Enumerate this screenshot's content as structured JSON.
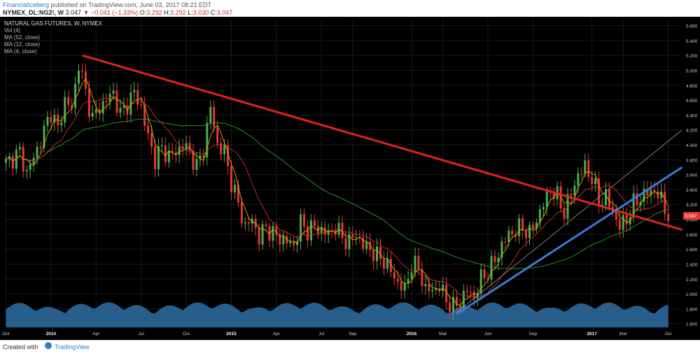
{
  "header": {
    "publisher": "FinancialIceberg",
    "published_text": "published on TradingView.com, June 03, 2017 08:21 EDT",
    "symbol": "NYMEX_DL:NG2!, W",
    "price": "3.047",
    "change": "−0.041 (−1.33%)",
    "ohlc_o_label": "O:",
    "ohlc_o": "3.292",
    "ohlc_h_label": "H:",
    "ohlc_h": "3.292",
    "ohlc_l_label": "L:",
    "ohlc_l": "3.030",
    "ohlc_c_label": "C:",
    "ohlc_c": "3.047"
  },
  "footer": {
    "created_with": "Created with",
    "brand": "TradingView"
  },
  "colors": {
    "background": "#000000",
    "bull": "#4caf50",
    "bear": "#e53935",
    "resistance_line": "#e32020",
    "support_line": "#3a7ad6",
    "ma12": "#d32f2f",
    "ma52": "#2e9e2e",
    "ma4": "#c8b400",
    "volume": "#2e6fa3",
    "grid": "#1a1a1a"
  },
  "chart_data": {
    "type": "candlestick",
    "title": "NATURAL GAS FUTURES, W, NYMEX",
    "indicators": [
      "Vol (4)",
      "MA (52, close)",
      "MA (12, close)",
      "MA (4, close)"
    ],
    "y_ticks": [
      "5.600",
      "5.400",
      "5.200",
      "5.000",
      "4.800",
      "4.600",
      "4.400",
      "4.200",
      "4.000",
      "3.800",
      "3.600",
      "3.400",
      "3.200",
      "3.000",
      "2.800",
      "2.600",
      "2.400",
      "2.200",
      "2.000",
      "1.800",
      "1.600"
    ],
    "ylim": [
      1.55,
      5.68
    ],
    "x_labels": [
      {
        "label": "Oct",
        "week": 0
      },
      {
        "label": "2014",
        "week": 13
      },
      {
        "label": "Apr",
        "week": 26
      },
      {
        "label": "Jul",
        "week": 39
      },
      {
        "label": "Oct",
        "week": 52
      },
      {
        "label": "2015",
        "week": 65
      },
      {
        "label": "Apr",
        "week": 78
      },
      {
        "label": "Jul",
        "week": 91
      },
      {
        "label": "Sep",
        "week": 100
      },
      {
        "label": "2016",
        "week": 117
      },
      {
        "label": "Mar",
        "week": 126
      },
      {
        "label": "Jun",
        "week": 139
      },
      {
        "label": "Sep",
        "week": 152
      },
      {
        "label": "2017",
        "week": 169
      },
      {
        "label": "Mar",
        "week": 178
      },
      {
        "label": "Jun",
        "week": 191
      }
    ],
    "weeks_total": 195,
    "last_price_label": "3.047",
    "close_path": [
      [
        0,
        3.75
      ],
      [
        4,
        3.9
      ],
      [
        6,
        3.62
      ],
      [
        10,
        4.05
      ],
      [
        13,
        4.45
      ],
      [
        15,
        4.2
      ],
      [
        17,
        4.6
      ],
      [
        19,
        4.48
      ],
      [
        21,
        5.1
      ],
      [
        23,
        4.7
      ],
      [
        25,
        4.35
      ],
      [
        27,
        4.5
      ],
      [
        29,
        4.6
      ],
      [
        31,
        4.7
      ],
      [
        33,
        4.4
      ],
      [
        35,
        4.55
      ],
      [
        37,
        4.7
      ],
      [
        39,
        4.5
      ],
      [
        41,
        4.1
      ],
      [
        43,
        3.8
      ],
      [
        45,
        3.95
      ],
      [
        47,
        3.85
      ],
      [
        49,
        3.9
      ],
      [
        51,
        4.0
      ],
      [
        53,
        3.9
      ],
      [
        55,
        3.7
      ],
      [
        57,
        3.95
      ],
      [
        59,
        4.5
      ],
      [
        61,
        4.0
      ],
      [
        63,
        3.9
      ],
      [
        65,
        3.5
      ],
      [
        67,
        3.2
      ],
      [
        69,
        2.9
      ],
      [
        71,
        3.0
      ],
      [
        73,
        2.75
      ],
      [
        75,
        2.9
      ],
      [
        77,
        2.8
      ],
      [
        79,
        2.75
      ],
      [
        81,
        2.7
      ],
      [
        83,
        2.65
      ],
      [
        85,
        2.95
      ],
      [
        87,
        2.85
      ],
      [
        89,
        2.9
      ],
      [
        91,
        2.85
      ],
      [
        93,
        2.8
      ],
      [
        95,
        2.9
      ],
      [
        97,
        2.75
      ],
      [
        99,
        2.7
      ],
      [
        101,
        2.8
      ],
      [
        103,
        2.65
      ],
      [
        105,
        2.6
      ],
      [
        107,
        2.5
      ],
      [
        109,
        2.45
      ],
      [
        111,
        2.3
      ],
      [
        113,
        2.15
      ],
      [
        115,
        2.05
      ],
      [
        117,
        2.4
      ],
      [
        119,
        2.35
      ],
      [
        121,
        2.05
      ],
      [
        123,
        2.05
      ],
      [
        125,
        2.1
      ],
      [
        127,
        1.92
      ],
      [
        129,
        1.82
      ],
      [
        131,
        1.9
      ],
      [
        133,
        2.05
      ],
      [
        135,
        1.95
      ],
      [
        137,
        2.2
      ],
      [
        139,
        2.3
      ],
      [
        141,
        2.45
      ],
      [
        143,
        2.65
      ],
      [
        145,
        2.8
      ],
      [
        147,
        2.85
      ],
      [
        149,
        2.9
      ],
      [
        151,
        2.8
      ],
      [
        153,
        3.0
      ],
      [
        155,
        3.2
      ],
      [
        157,
        3.4
      ],
      [
        159,
        3.3
      ],
      [
        161,
        3.1
      ],
      [
        163,
        3.35
      ],
      [
        165,
        3.6
      ],
      [
        167,
        3.7
      ],
      [
        169,
        3.55
      ],
      [
        171,
        3.25
      ],
      [
        173,
        3.3
      ],
      [
        175,
        3.1
      ],
      [
        177,
        2.9
      ],
      [
        179,
        3.0
      ],
      [
        181,
        3.2
      ],
      [
        183,
        3.3
      ],
      [
        185,
        3.35
      ],
      [
        187,
        3.4
      ],
      [
        189,
        3.25
      ],
      [
        191,
        3.05
      ]
    ],
    "resistance_line": {
      "from": [
        22,
        5.2
      ],
      "to": [
        195,
        2.86
      ]
    },
    "support_line": {
      "from": [
        130,
        1.73
      ],
      "to": [
        195,
        3.7
      ]
    },
    "thin_line": {
      "from": [
        130,
        1.75
      ],
      "to": [
        195,
        4.2
      ]
    }
  }
}
